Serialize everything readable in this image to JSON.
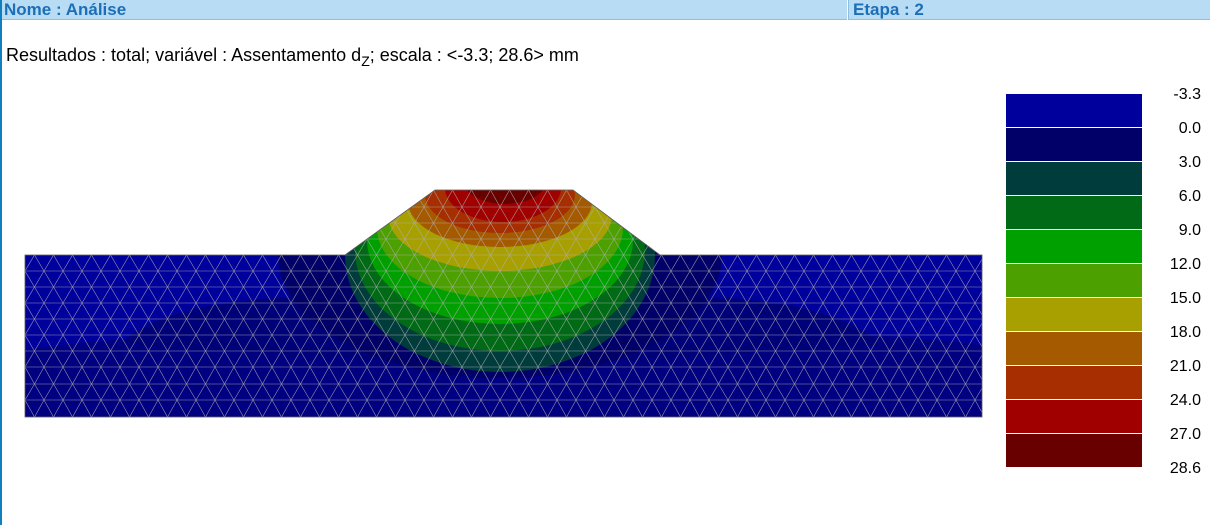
{
  "header": {
    "name_label": "Nome : Análise",
    "stage_label": "Etapa : 2"
  },
  "results": {
    "prefix": "Resultados : total; variável : Assentamento d",
    "subscript": "Z",
    "suffix": "; escala : <-3.3; 28.6> mm"
  },
  "legend": {
    "labels": [
      "-3.3",
      "0.0",
      "3.0",
      "6.0",
      "9.0",
      "12.0",
      "15.0",
      "18.0",
      "21.0",
      "24.0",
      "27.0",
      "28.6"
    ],
    "colors": [
      "#00009c",
      "#000068",
      "#003c3c",
      "#006a16",
      "#00a000",
      "#4ca000",
      "#a8a000",
      "#a65a00",
      "#a62e00",
      "#a00000",
      "#680000"
    ]
  },
  "colors": {
    "header_bg": "#b9dcf5",
    "header_text": "#1c6fb7",
    "mesh_line": "#b0b0b0"
  }
}
